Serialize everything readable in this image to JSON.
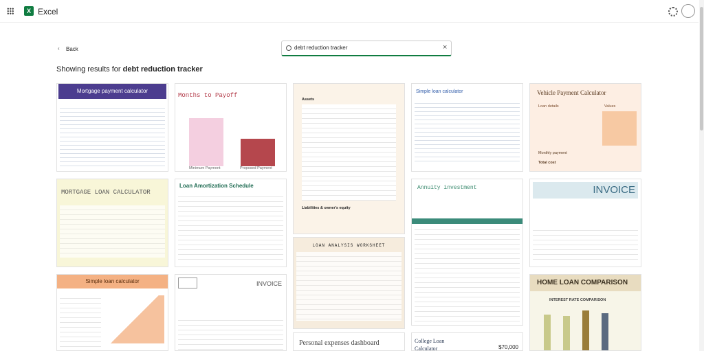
{
  "app": {
    "name": "Excel"
  },
  "nav": {
    "back": "Back"
  },
  "search": {
    "query": "debt reduction tracker"
  },
  "results": {
    "prefix": "Showing results for",
    "query": "debt reduction tracker"
  },
  "templates": [
    {
      "title": "Mortgage payment calculator"
    },
    {
      "title": "MORTGAGE LOAN CALCULATOR"
    },
    {
      "title": "Simple loan calculator"
    },
    {
      "title": "Months to Payoff",
      "labels": [
        "Minimum Payment",
        "Proposed Payment"
      ]
    },
    {
      "title": "Loan Amortization Schedule"
    },
    {
      "title": "INVOICE"
    },
    {
      "title": "Assets",
      "subtitle": "Liabilities & owner's equity"
    },
    {
      "title": "LOAN ANALYSIS WORKSHEET"
    },
    {
      "title": "Personal expenses dashboard"
    },
    {
      "title": "Simple loan calculator"
    },
    {
      "title": "Annuity investment"
    },
    {
      "title": "College Loan Calculator",
      "amount": "$70,000"
    },
    {
      "title": "Vehicle Payment Calculator",
      "labels": [
        "Loan details",
        "Values",
        "Monthly payment",
        "Total cost"
      ]
    },
    {
      "title": "INVOICE"
    },
    {
      "title": "HOME LOAN COMPARISON",
      "subtitle": "INTEREST RATE COMPARISON"
    }
  ]
}
